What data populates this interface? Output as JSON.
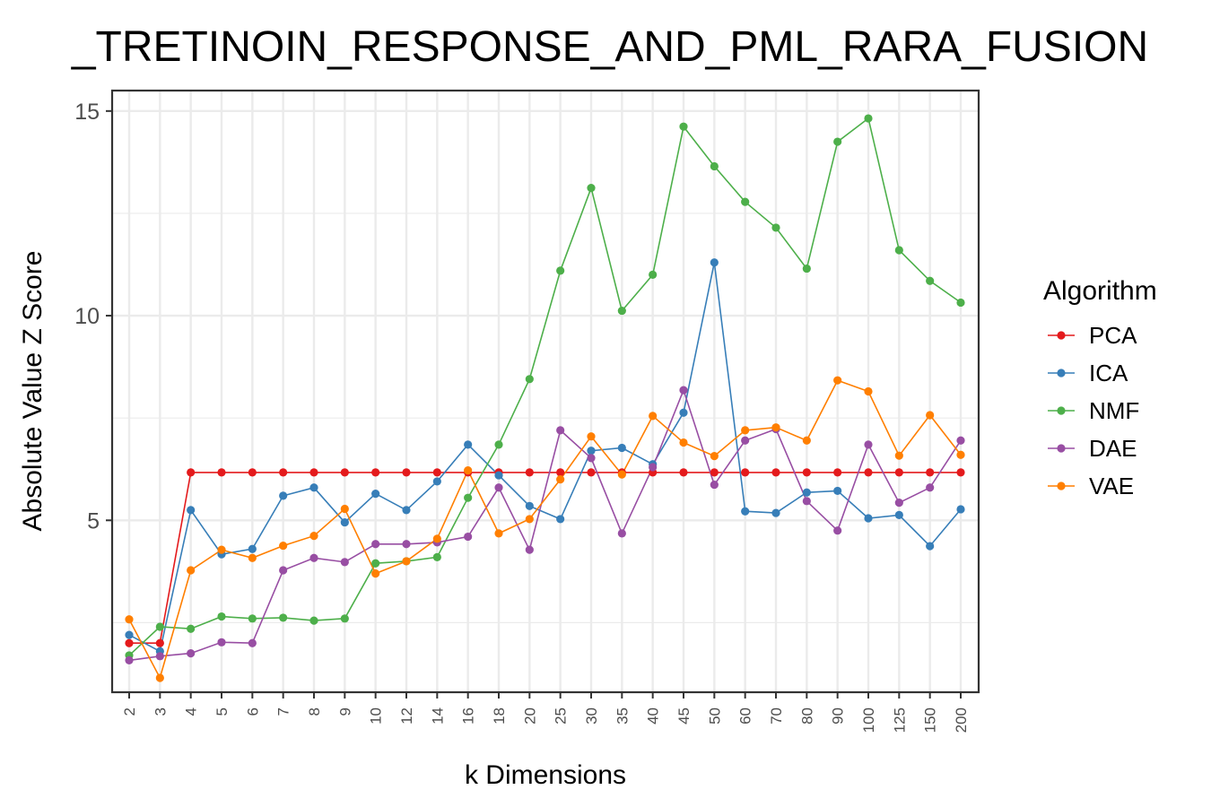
{
  "chart_data": {
    "type": "line",
    "title": "_TRETINOIN_RESPONSE_AND_PML_RARA_FUSION",
    "xlabel": "k Dimensions",
    "ylabel": "Absolute Value Z Score",
    "categories": [
      "2",
      "3",
      "4",
      "5",
      "6",
      "7",
      "8",
      "9",
      "10",
      "12",
      "14",
      "16",
      "18",
      "20",
      "25",
      "30",
      "35",
      "40",
      "45",
      "50",
      "60",
      "70",
      "80",
      "90",
      "100",
      "125",
      "150",
      "200"
    ],
    "ylim": [
      0.8,
      15.5
    ],
    "yticks": [
      5,
      10,
      15
    ],
    "grid": true,
    "legend": {
      "title": "Algorithm",
      "position": "right"
    },
    "series": [
      {
        "name": "PCA",
        "color": "#e41a1c",
        "values": [
          2.0,
          2.0,
          6.17,
          6.17,
          6.17,
          6.17,
          6.17,
          6.17,
          6.17,
          6.17,
          6.17,
          6.17,
          6.17,
          6.17,
          6.17,
          6.17,
          6.17,
          6.17,
          6.17,
          6.17,
          6.17,
          6.17,
          6.17,
          6.17,
          6.17,
          6.17,
          6.17,
          6.17
        ]
      },
      {
        "name": "ICA",
        "color": "#377eb8",
        "values": [
          2.2,
          1.8,
          5.25,
          4.17,
          4.3,
          5.6,
          5.8,
          4.95,
          5.65,
          5.25,
          5.95,
          6.85,
          6.1,
          5.35,
          5.03,
          6.7,
          6.77,
          6.37,
          7.63,
          11.3,
          5.22,
          5.18,
          5.68,
          5.72,
          5.05,
          5.13,
          4.37,
          5.27
        ]
      },
      {
        "name": "NMF",
        "color": "#4daf4a",
        "values": [
          1.7,
          2.4,
          2.35,
          2.65,
          2.6,
          2.62,
          2.55,
          2.6,
          3.95,
          4.0,
          4.1,
          5.55,
          6.85,
          8.45,
          11.1,
          13.12,
          10.12,
          11.0,
          14.62,
          13.65,
          12.78,
          12.15,
          11.15,
          14.25,
          14.82,
          11.6,
          10.85,
          10.32
        ]
      },
      {
        "name": "DAE",
        "color": "#984ea3",
        "values": [
          1.58,
          1.68,
          1.75,
          2.02,
          2.0,
          3.78,
          4.08,
          3.98,
          4.42,
          4.42,
          4.46,
          4.6,
          5.8,
          4.28,
          7.2,
          6.52,
          4.68,
          6.3,
          8.18,
          5.87,
          6.95,
          7.23,
          5.47,
          4.75,
          6.85,
          5.43,
          5.8,
          6.95
        ]
      },
      {
        "name": "VAE",
        "color": "#ff7f00",
        "values": [
          2.58,
          1.15,
          3.78,
          4.28,
          4.08,
          4.38,
          4.62,
          5.28,
          3.7,
          4.0,
          4.55,
          6.22,
          4.68,
          5.03,
          6.0,
          7.05,
          6.12,
          7.55,
          6.9,
          6.57,
          7.2,
          7.27,
          6.95,
          8.42,
          8.15,
          6.58,
          7.57,
          6.6
        ]
      }
    ]
  }
}
